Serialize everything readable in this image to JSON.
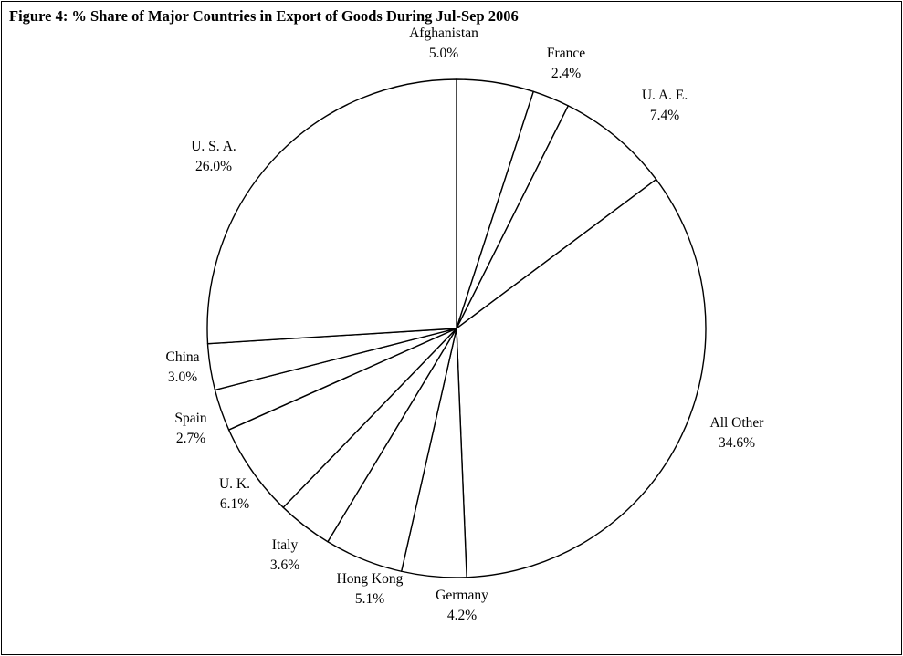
{
  "chart_data": {
    "type": "pie",
    "title": "Figure 4: % Share of Major Countries in Export of Goods During Jul-Sep 2006",
    "slices": [
      {
        "label": "Afghanistan",
        "value": 5.0,
        "display": "5.0%"
      },
      {
        "label": "France",
        "value": 2.4,
        "display": "2.4%"
      },
      {
        "label": "U. A. E.",
        "value": 7.4,
        "display": "7.4%"
      },
      {
        "label": "All Other",
        "value": 34.6,
        "display": "34.6%"
      },
      {
        "label": "Germany",
        "value": 4.2,
        "display": "4.2%"
      },
      {
        "label": "Hong Kong",
        "value": 5.1,
        "display": "5.1%"
      },
      {
        "label": "Italy",
        "value": 3.6,
        "display": "3.6%"
      },
      {
        "label": "U. K.",
        "value": 6.1,
        "display": "6.1%"
      },
      {
        "label": "Spain",
        "value": 2.7,
        "display": "2.7%"
      },
      {
        "label": "China",
        "value": 3.0,
        "display": "3.0%"
      },
      {
        "label": "U. S. A.",
        "value": 26.0,
        "display": "26.0%"
      }
    ],
    "start": "12 o'clock",
    "direction": "clockwise",
    "fill": "#ffffff",
    "stroke": "#000000",
    "legend": "none"
  }
}
